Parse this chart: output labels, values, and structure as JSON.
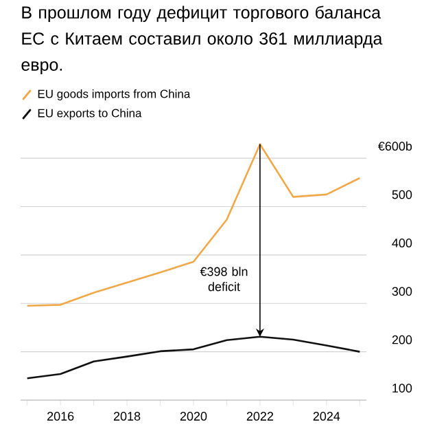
{
  "chart_data": {
    "type": "line",
    "title": "В прошлом году дефицит торгового баланса ЕС с Китаем составил около 361 миллиарда евро.",
    "x": [
      2015,
      2016,
      2017,
      2018,
      2019,
      2020,
      2021,
      2022,
      2023,
      2024,
      2025
    ],
    "series": [
      {
        "name": "EU goods imports from China",
        "color": "#f0a848",
        "values": [
          295,
          297,
          322,
          343,
          364,
          386,
          473,
          629,
          520,
          525,
          559
        ]
      },
      {
        "name": "EU exports to China",
        "color": "#111111",
        "values": [
          145,
          154,
          180,
          190,
          201,
          205,
          224,
          231,
          225,
          213,
          200
        ]
      }
    ],
    "xlim": [
      2014.8,
      2025.2
    ],
    "ylim": [
      100,
      630
    ],
    "xticks": [
      {
        "value": 2015,
        "label": null
      },
      2016,
      {
        "value": 2017,
        "label": null
      },
      2018,
      {
        "value": 2019,
        "label": null
      },
      2020,
      {
        "value": 2021,
        "label": null
      },
      2022,
      {
        "value": 2023,
        "label": null
      },
      2024,
      {
        "value": 2025,
        "label": null
      }
    ],
    "yticks": [
      100,
      200,
      300,
      400,
      500,
      {
        "value": 600,
        "label": "€600b"
      }
    ],
    "annotations": [
      "€398 bln deficit"
    ],
    "grid": "y",
    "legend": "top left",
    "marker": "none",
    "line_style": "solid"
  }
}
